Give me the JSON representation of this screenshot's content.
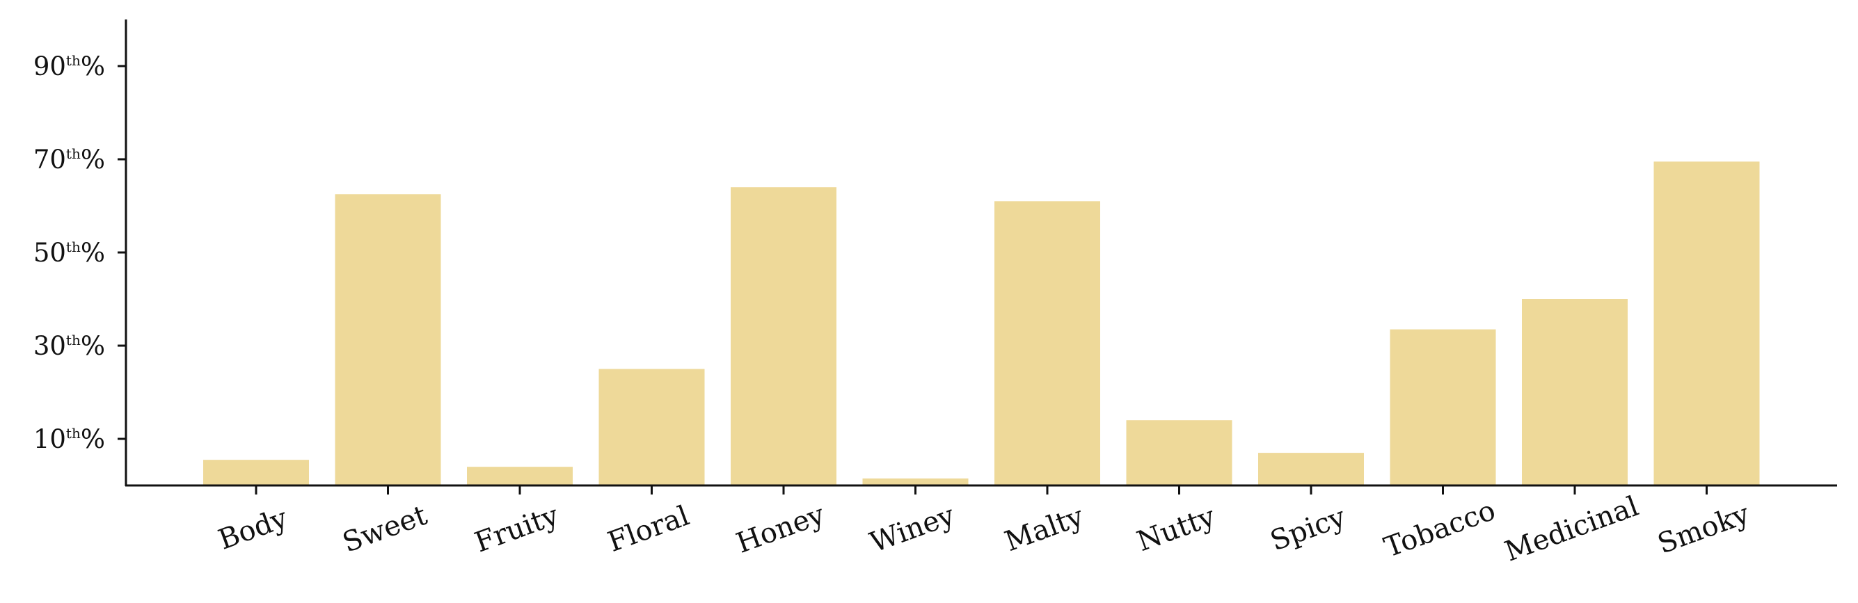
{
  "chart_data": {
    "type": "bar",
    "title": "",
    "xlabel": "",
    "ylabel": "",
    "categories": [
      "Body",
      "Sweet",
      "Fruity",
      "Floral",
      "Honey",
      "Winey",
      "Malty",
      "Nutty",
      "Spicy",
      "Tobacco",
      "Medicinal",
      "Smoky"
    ],
    "values": [
      5.5,
      62.5,
      4,
      25,
      64,
      1.5,
      61,
      14,
      7,
      33.5,
      40,
      69.5
    ],
    "ylim": [
      0,
      100
    ],
    "yticks": [
      {
        "value": 10,
        "base": "10",
        "sup": "th",
        "suffix": "%"
      },
      {
        "value": 30,
        "base": "30",
        "sup": "th",
        "suffix": "%"
      },
      {
        "value": 50,
        "base": "50",
        "sup": "th",
        "suffix": "%"
      },
      {
        "value": 70,
        "base": "70",
        "sup": "th",
        "suffix": "%"
      },
      {
        "value": 90,
        "base": "90",
        "sup": "th",
        "suffix": "%"
      }
    ],
    "bar_color": "#eed999",
    "axis_color": "#111111",
    "grid": false,
    "legend": "none"
  }
}
